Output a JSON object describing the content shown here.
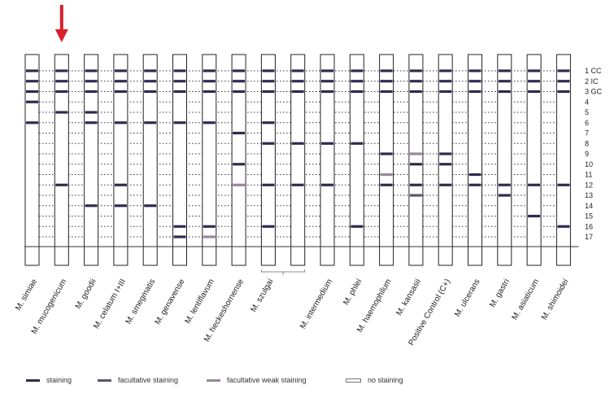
{
  "strips": [
    {
      "label": "M. simiae",
      "bands": [
        {
          "row": 1,
          "type": "staining"
        },
        {
          "row": 2,
          "type": "staining"
        },
        {
          "row": 3,
          "type": "staining"
        },
        {
          "row": 4,
          "type": "staining"
        },
        {
          "row": 6,
          "type": "staining"
        }
      ]
    },
    {
      "label": "M. mucogenicum",
      "bands": [
        {
          "row": 1,
          "type": "staining"
        },
        {
          "row": 2,
          "type": "staining"
        },
        {
          "row": 3,
          "type": "staining"
        },
        {
          "row": 5,
          "type": "staining"
        },
        {
          "row": 12,
          "type": "staining"
        }
      ]
    },
    {
      "label": "M. goodii",
      "bands": [
        {
          "row": 1,
          "type": "staining"
        },
        {
          "row": 2,
          "type": "staining"
        },
        {
          "row": 3,
          "type": "staining"
        },
        {
          "row": 5,
          "type": "staining"
        },
        {
          "row": 6,
          "type": "staining"
        },
        {
          "row": 14,
          "type": "staining"
        }
      ]
    },
    {
      "label": "M. celatum I+III",
      "bands": [
        {
          "row": 1,
          "type": "staining"
        },
        {
          "row": 2,
          "type": "staining"
        },
        {
          "row": 3,
          "type": "staining"
        },
        {
          "row": 6,
          "type": "staining"
        },
        {
          "row": 12,
          "type": "staining"
        },
        {
          "row": 14,
          "type": "staining"
        }
      ]
    },
    {
      "label": "M. smegmatis",
      "bands": [
        {
          "row": 1,
          "type": "staining"
        },
        {
          "row": 2,
          "type": "staining"
        },
        {
          "row": 3,
          "type": "staining"
        },
        {
          "row": 6,
          "type": "staining"
        },
        {
          "row": 14,
          "type": "staining"
        }
      ]
    },
    {
      "label": "M. genavense",
      "bands": [
        {
          "row": 1,
          "type": "staining"
        },
        {
          "row": 2,
          "type": "staining"
        },
        {
          "row": 3,
          "type": "staining"
        },
        {
          "row": 6,
          "type": "staining"
        },
        {
          "row": 16,
          "type": "staining"
        },
        {
          "row": 17,
          "type": "staining"
        }
      ]
    },
    {
      "label": "M. lentiflavum",
      "bands": [
        {
          "row": 1,
          "type": "staining"
        },
        {
          "row": 2,
          "type": "staining"
        },
        {
          "row": 3,
          "type": "staining"
        },
        {
          "row": 6,
          "type": "staining"
        },
        {
          "row": 16,
          "type": "staining"
        },
        {
          "row": 17,
          "type": "facultative weak staining"
        }
      ]
    },
    {
      "label": "M. heckeshornense",
      "bands": [
        {
          "row": 1,
          "type": "staining"
        },
        {
          "row": 2,
          "type": "staining"
        },
        {
          "row": 3,
          "type": "staining"
        },
        {
          "row": 7,
          "type": "staining"
        },
        {
          "row": 10,
          "type": "staining"
        },
        {
          "row": 12,
          "type": "facultative weak staining"
        }
      ]
    },
    {
      "label": "M. szulgai",
      "bands": [
        {
          "row": 1,
          "type": "staining"
        },
        {
          "row": 2,
          "type": "staining"
        },
        {
          "row": 3,
          "type": "staining"
        },
        {
          "row": 6,
          "type": "staining"
        },
        {
          "row": 8,
          "type": "staining"
        },
        {
          "row": 12,
          "type": "staining"
        },
        {
          "row": 16,
          "type": "staining"
        }
      ]
    },
    {
      "label": "",
      "bands": [
        {
          "row": 1,
          "type": "staining"
        },
        {
          "row": 2,
          "type": "staining"
        },
        {
          "row": 3,
          "type": "staining"
        },
        {
          "row": 8,
          "type": "staining"
        },
        {
          "row": 12,
          "type": "staining"
        }
      ]
    },
    {
      "label": "M. intermedium",
      "bands": [
        {
          "row": 1,
          "type": "staining"
        },
        {
          "row": 2,
          "type": "staining"
        },
        {
          "row": 3,
          "type": "staining"
        },
        {
          "row": 8,
          "type": "staining"
        },
        {
          "row": 12,
          "type": "staining"
        }
      ]
    },
    {
      "label": "M. phlei",
      "bands": [
        {
          "row": 1,
          "type": "staining"
        },
        {
          "row": 2,
          "type": "staining"
        },
        {
          "row": 3,
          "type": "staining"
        },
        {
          "row": 8,
          "type": "staining"
        },
        {
          "row": 16,
          "type": "staining"
        }
      ]
    },
    {
      "label": "M. haemophilum",
      "bands": [
        {
          "row": 1,
          "type": "staining"
        },
        {
          "row": 2,
          "type": "staining"
        },
        {
          "row": 3,
          "type": "staining"
        },
        {
          "row": 9,
          "type": "staining"
        },
        {
          "row": 11,
          "type": "facultative weak staining"
        },
        {
          "row": 12,
          "type": "staining"
        }
      ]
    },
    {
      "label": "M. kansasii",
      "bands": [
        {
          "row": 1,
          "type": "staining"
        },
        {
          "row": 2,
          "type": "staining"
        },
        {
          "row": 3,
          "type": "staining"
        },
        {
          "row": 9,
          "type": "facultative weak staining"
        },
        {
          "row": 10,
          "type": "staining"
        },
        {
          "row": 12,
          "type": "staining"
        },
        {
          "row": 13,
          "type": "facultative staining"
        }
      ]
    },
    {
      "label": "Positive Control (C+)",
      "bands": [
        {
          "row": 1,
          "type": "staining"
        },
        {
          "row": 2,
          "type": "staining"
        },
        {
          "row": 3,
          "type": "staining"
        },
        {
          "row": 9,
          "type": "staining"
        },
        {
          "row": 10,
          "type": "staining"
        },
        {
          "row": 12,
          "type": "staining"
        }
      ]
    },
    {
      "label": "M. ulcerans",
      "bands": [
        {
          "row": 1,
          "type": "staining"
        },
        {
          "row": 2,
          "type": "staining"
        },
        {
          "row": 3,
          "type": "staining"
        },
        {
          "row": 11,
          "type": "staining"
        },
        {
          "row": 12,
          "type": "staining"
        }
      ]
    },
    {
      "label": "M. gastri",
      "bands": [
        {
          "row": 1,
          "type": "staining"
        },
        {
          "row": 2,
          "type": "staining"
        },
        {
          "row": 3,
          "type": "staining"
        },
        {
          "row": 12,
          "type": "staining"
        },
        {
          "row": 13,
          "type": "staining"
        }
      ]
    },
    {
      "label": "M. asiaticum",
      "bands": [
        {
          "row": 1,
          "type": "staining"
        },
        {
          "row": 2,
          "type": "staining"
        },
        {
          "row": 3,
          "type": "staining"
        },
        {
          "row": 12,
          "type": "staining"
        },
        {
          "row": 15,
          "type": "staining"
        }
      ]
    },
    {
      "label": "M. shimoidei",
      "bands": [
        {
          "row": 1,
          "type": "staining"
        },
        {
          "row": 2,
          "type": "staining"
        },
        {
          "row": 3,
          "type": "staining"
        },
        {
          "row": 12,
          "type": "staining"
        },
        {
          "row": 16,
          "type": "staining"
        }
      ]
    }
  ],
  "row_labels": [
    "1 CC",
    "2 IC",
    "3 GC",
    "4",
    "5",
    "6",
    "7",
    "8",
    "9",
    "10",
    "11",
    "12",
    "13",
    "14",
    "15",
    "16",
    "17"
  ],
  "highlight_strip_index": 1,
  "bracket_strips": [
    8,
    9
  ],
  "legend": [
    {
      "label": "staining",
      "type": "staining"
    },
    {
      "label": "facultative staining",
      "type": "facultative staining"
    },
    {
      "label": "facultative weak staining",
      "type": "facultative weak staining"
    },
    {
      "label": "no staining",
      "type": "no staining"
    }
  ],
  "colors": {
    "staining": "#2e2a4f",
    "facultative staining": "#5a5670",
    "facultative weak staining": "#9a869c",
    "arrow": "#d8202a",
    "strip_outline": "#222222",
    "dotted": "#333333"
  }
}
